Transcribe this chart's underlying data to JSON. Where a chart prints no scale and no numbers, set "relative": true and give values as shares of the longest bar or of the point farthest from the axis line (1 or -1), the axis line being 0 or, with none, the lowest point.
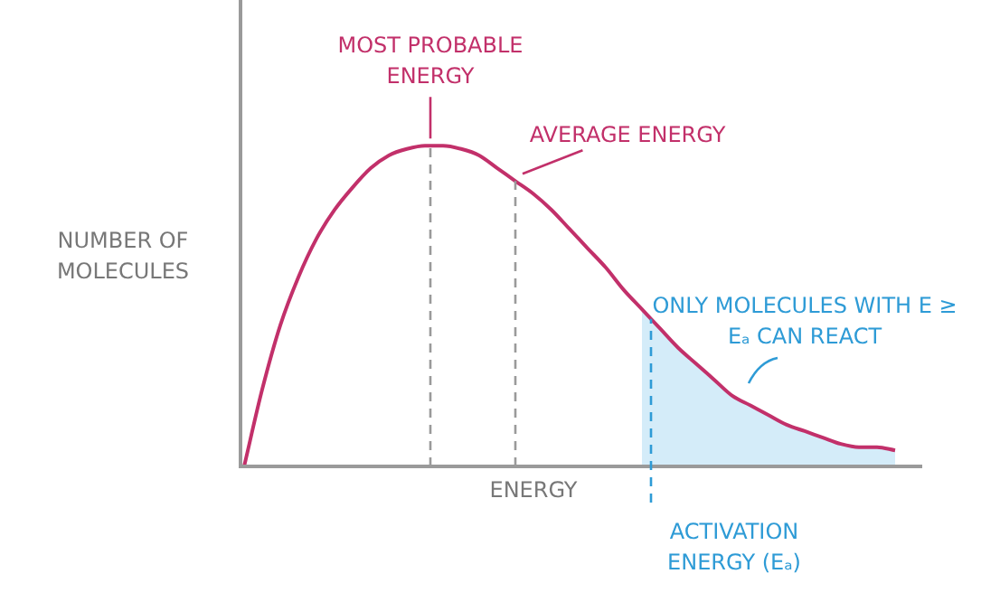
{
  "chart_data": {
    "type": "line",
    "relative": true,
    "xlabel": "ENERGY",
    "ylabel": "NUMBER OF MOLECULES",
    "categories": [
      null,
      null,
      null,
      null,
      null,
      null,
      null,
      null,
      null,
      null,
      null,
      null,
      null,
      null,
      null,
      null,
      null,
      null,
      null,
      null,
      null,
      null,
      null,
      null,
      null,
      null,
      null,
      null,
      null,
      null,
      null,
      null,
      null,
      null,
      null,
      null,
      null
    ],
    "series": [
      {
        "color": "#c2306a",
        "values": [
          0,
          0.24,
          0.44,
          0.59,
          0.71,
          0.8,
          0.87,
          0.93,
          0.97,
          0.99,
          1,
          1,
          0.99,
          0.97,
          0.93,
          0.89,
          0.85,
          0.8,
          0.74,
          0.68,
          0.62,
          0.55,
          0.49,
          0.43,
          0.37,
          0.32,
          0.27,
          0.22,
          0.19,
          0.16,
          0.13,
          0.11,
          0.09,
          0.07,
          0.06,
          0.06,
          0.05
        ]
      },
      {
        "type": "area",
        "color": "#d4ecf9",
        "values": [
          null,
          null,
          null,
          null,
          null,
          null,
          null,
          null,
          null,
          null,
          null,
          null,
          null,
          null,
          null,
          null,
          null,
          null,
          null,
          null,
          null,
          null,
          0.49,
          0.43,
          0.37,
          0.32,
          0.27,
          0.22,
          0.19,
          0.16,
          0.13,
          0.11,
          0.09,
          0.07,
          0.06,
          0.06,
          0.05
        ]
      }
    ],
    "annotations": [
      "MOST PROBABLE ENERGY",
      "AVERAGE ENERGY",
      "ACTIVATION ENERGY (Eₐ)",
      "ONLY MOLECULES WITH E ≥ Eₐ CAN REACT"
    ],
    "legend": false,
    "tick_labels": false,
    "marker": "none",
    "line_style": "solid"
  }
}
